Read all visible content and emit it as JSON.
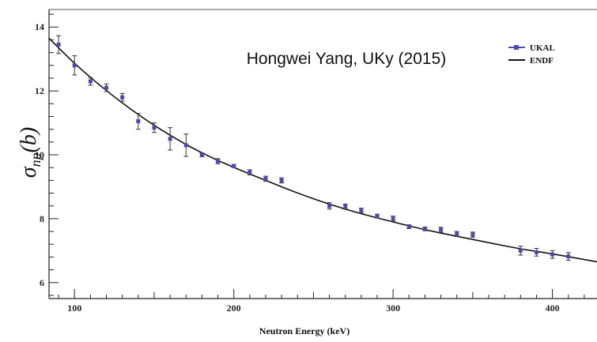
{
  "chart_data": {
    "type": "scatter",
    "title": "",
    "annotation": "Hongwei Yang, UKy (2015)",
    "xlabel": "Neutron Energy (keV)",
    "ylabel": "σnp(b)",
    "ylabel_symbol": "σ",
    "ylabel_sub": "np",
    "ylabel_unit": "(b)",
    "xlim": [
      84,
      428
    ],
    "ylim": [
      5.5,
      14.55
    ],
    "x_ticks": [
      100,
      200,
      300,
      400
    ],
    "y_ticks": [
      6,
      8,
      10,
      12,
      14
    ],
    "grid": false,
    "legend_position": "top-right",
    "colors": {
      "ukal": "#4a4ab0",
      "endf": "#111111",
      "axis": "#222222"
    },
    "series": [
      {
        "name": "UKAL",
        "style": "points-with-errorbars",
        "points": [
          {
            "x": 90,
            "y": 13.45,
            "err": 0.28
          },
          {
            "x": 100,
            "y": 12.8,
            "err": 0.3
          },
          {
            "x": 110,
            "y": 12.3,
            "err": 0.12
          },
          {
            "x": 120,
            "y": 12.1,
            "err": 0.12
          },
          {
            "x": 130,
            "y": 11.8,
            "err": 0.12
          },
          {
            "x": 140,
            "y": 11.05,
            "err": 0.25
          },
          {
            "x": 150,
            "y": 10.85,
            "err": 0.15
          },
          {
            "x": 160,
            "y": 10.5,
            "err": 0.35
          },
          {
            "x": 170,
            "y": 10.3,
            "err": 0.35
          },
          {
            "x": 180,
            "y": 10.0,
            "err": 0.06
          },
          {
            "x": 190,
            "y": 9.8,
            "err": 0.08
          },
          {
            "x": 200,
            "y": 9.65,
            "err": 0.05
          },
          {
            "x": 210,
            "y": 9.45,
            "err": 0.08
          },
          {
            "x": 220,
            "y": 9.25,
            "err": 0.08
          },
          {
            "x": 230,
            "y": 9.2,
            "err": 0.08
          },
          {
            "x": 260,
            "y": 8.4,
            "err": 0.1
          },
          {
            "x": 270,
            "y": 8.38,
            "err": 0.08
          },
          {
            "x": 280,
            "y": 8.25,
            "err": 0.08
          },
          {
            "x": 290,
            "y": 8.08,
            "err": 0.06
          },
          {
            "x": 300,
            "y": 8.0,
            "err": 0.08
          },
          {
            "x": 310,
            "y": 7.75,
            "err": 0.06
          },
          {
            "x": 320,
            "y": 7.68,
            "err": 0.06
          },
          {
            "x": 330,
            "y": 7.65,
            "err": 0.08
          },
          {
            "x": 340,
            "y": 7.52,
            "err": 0.08
          },
          {
            "x": 350,
            "y": 7.5,
            "err": 0.08
          },
          {
            "x": 380,
            "y": 7.0,
            "err": 0.14
          },
          {
            "x": 390,
            "y": 6.95,
            "err": 0.12
          },
          {
            "x": 400,
            "y": 6.88,
            "err": 0.12
          },
          {
            "x": 410,
            "y": 6.82,
            "err": 0.12
          }
        ]
      },
      {
        "name": "ENDF",
        "style": "line",
        "x": [
          84,
          100,
          120,
          140,
          160,
          180,
          200,
          220,
          240,
          260,
          280,
          300,
          320,
          340,
          360,
          380,
          400,
          428
        ],
        "y": [
          13.65,
          12.85,
          12.0,
          11.25,
          10.6,
          10.05,
          9.6,
          9.2,
          8.8,
          8.45,
          8.15,
          7.9,
          7.65,
          7.45,
          7.25,
          7.05,
          6.9,
          6.65
        ]
      }
    ]
  }
}
